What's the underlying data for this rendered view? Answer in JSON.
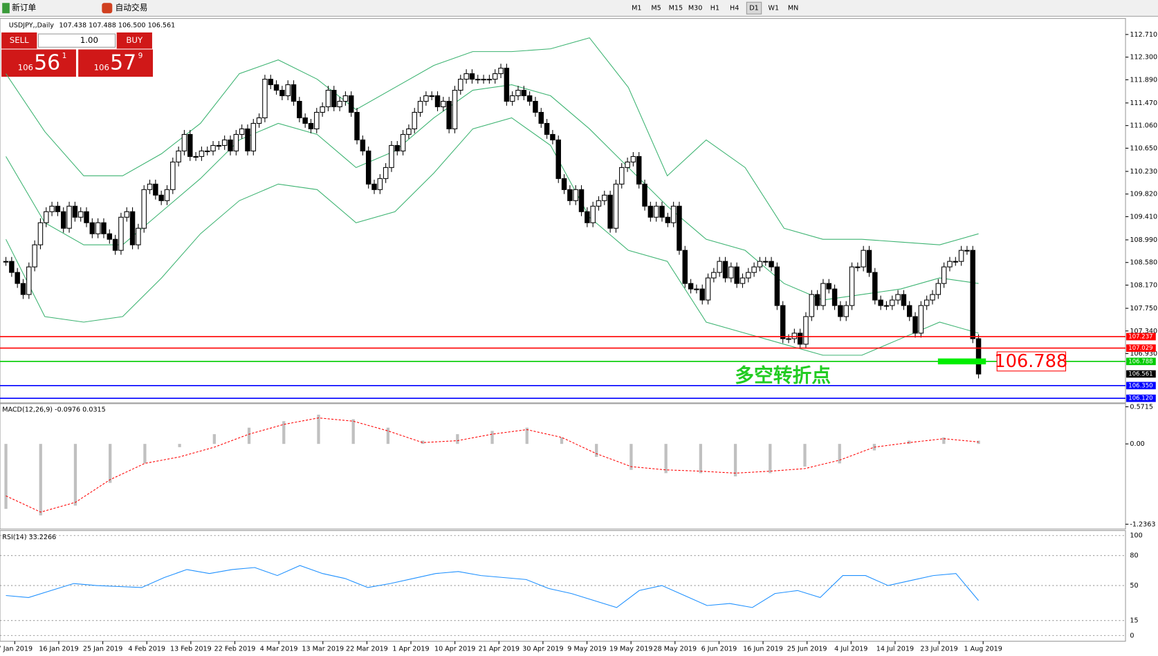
{
  "toolbar": {
    "new_order": "新订单",
    "auto_trading": "自动交易",
    "timeframes": [
      "M1",
      "M5",
      "M15",
      "M30",
      "H1",
      "H4",
      "D1",
      "W1",
      "MN"
    ]
  },
  "header": {
    "symbol": "USDJPY,,Daily",
    "prices": "107.438 107.488 106.500 106.561"
  },
  "trade_panel": {
    "sell": "SELL",
    "buy": "BUY",
    "lots": "1.00",
    "bid": {
      "big": "106",
      "main": "56",
      "small": "1"
    },
    "ask": {
      "big": "106",
      "main": "57",
      "small": "9"
    }
  },
  "main": {
    "ylim": [
      106.05,
      112.8
    ],
    "yticks": [
      {
        "value": 112.71,
        "label": "112.710"
      },
      {
        "value": 112.3,
        "label": "112.300"
      },
      {
        "value": 111.89,
        "label": "111.890"
      },
      {
        "value": 111.47,
        "label": "111.470"
      },
      {
        "value": 111.06,
        "label": "111.060"
      },
      {
        "value": 110.65,
        "label": "110.650"
      },
      {
        "value": 110.23,
        "label": "110.230"
      },
      {
        "value": 109.82,
        "label": "109.820"
      },
      {
        "value": 109.41,
        "label": "109.410"
      },
      {
        "value": 108.99,
        "label": "108.990"
      },
      {
        "value": 108.58,
        "label": "108.580"
      },
      {
        "value": 108.17,
        "label": "108.170"
      },
      {
        "value": 107.75,
        "label": "107.750"
      },
      {
        "value": 107.34,
        "label": "107.340"
      },
      {
        "value": 106.93,
        "label": "106.930"
      }
    ],
    "closes": [
      108.6,
      108.4,
      108.2,
      108.0,
      108.5,
      108.9,
      109.3,
      109.5,
      109.6,
      109.5,
      109.2,
      109.6,
      109.4,
      109.5,
      109.3,
      109.1,
      109.3,
      109.1,
      109.0,
      108.8,
      109.4,
      109.5,
      108.9,
      109.2,
      109.9,
      110.0,
      109.8,
      109.7,
      109.9,
      110.4,
      110.6,
      110.9,
      110.5,
      110.5,
      110.6,
      110.6,
      110.7,
      110.7,
      110.8,
      110.6,
      110.9,
      111.0,
      110.6,
      111.1,
      111.2,
      111.9,
      111.8,
      111.7,
      111.6,
      111.8,
      111.5,
      111.2,
      111.1,
      111.0,
      111.3,
      111.4,
      111.7,
      111.4,
      111.5,
      111.6,
      111.3,
      110.8,
      110.6,
      110.0,
      109.9,
      110.1,
      110.3,
      110.7,
      110.6,
      110.9,
      111.0,
      111.3,
      111.5,
      111.6,
      111.6,
      111.4,
      111.5,
      111.0,
      111.7,
      111.9,
      112.0,
      111.9,
      111.9,
      111.9,
      111.9,
      112.0,
      112.1,
      111.5,
      111.6,
      111.7,
      111.6,
      111.5,
      111.3,
      111.1,
      110.9,
      110.8,
      110.1,
      109.9,
      109.7,
      109.9,
      109.5,
      109.3,
      109.6,
      109.7,
      109.8,
      109.2,
      110.0,
      110.3,
      110.4,
      110.5,
      110.0,
      109.6,
      109.4,
      109.6,
      109.4,
      109.3,
      109.6,
      108.8,
      108.2,
      108.1,
      108.1,
      107.9,
      108.3,
      108.4,
      108.6,
      108.3,
      108.5,
      108.2,
      108.3,
      108.4,
      108.5,
      108.6,
      108.6,
      108.5,
      107.8,
      107.2,
      107.2,
      107.3,
      107.1,
      107.6,
      108.0,
      107.8,
      108.2,
      108.1,
      107.8,
      107.6,
      107.8,
      108.5,
      108.5,
      108.8,
      108.4,
      107.9,
      107.8,
      107.8,
      107.9,
      108.0,
      107.8,
      107.6,
      107.3,
      107.8,
      107.9,
      108.0,
      108.2,
      108.5,
      108.6,
      108.6,
      108.8,
      108.8,
      107.2,
      106.56
    ],
    "bb_upper": [
      112.0,
      110.95,
      110.15,
      110.15,
      110.55,
      111.1,
      112.0,
      112.25,
      111.9,
      111.35,
      111.75,
      112.15,
      112.4,
      112.4,
      112.45,
      112.65,
      111.75,
      110.15,
      110.8,
      110.3,
      109.2,
      109.0,
      109.0,
      108.95,
      108.9,
      109.1
    ],
    "bb_middle": [
      110.5,
      109.3,
      108.9,
      108.9,
      109.5,
      110.1,
      110.8,
      111.1,
      110.9,
      110.3,
      110.6,
      111.2,
      111.7,
      111.8,
      111.6,
      111.0,
      110.3,
      109.6,
      109.0,
      108.8,
      108.2,
      107.9,
      108.0,
      108.1,
      108.3,
      108.2
    ],
    "bb_lower": [
      109.0,
      107.6,
      107.5,
      107.6,
      108.3,
      109.1,
      109.7,
      110.0,
      109.9,
      109.3,
      109.5,
      110.2,
      111.0,
      111.2,
      110.7,
      109.4,
      108.8,
      108.6,
      107.5,
      107.3,
      107.1,
      106.9,
      106.9,
      107.2,
      107.5,
      107.3
    ],
    "levels": [
      {
        "value": 107.237,
        "color": "#ff0000"
      },
      {
        "value": 107.029,
        "color": "#ff0000"
      },
      {
        "value": 106.788,
        "color": "#00cc00"
      },
      {
        "value": 106.35,
        "label": "106.350",
        "color": "#0000ff"
      },
      {
        "value": 106.12,
        "label": "106.120",
        "color": "#0000ff"
      }
    ],
    "current": 106.561,
    "marker": 106.788,
    "annotation": "多空转折点"
  },
  "macd": {
    "label": "MACD(12,26,9) -0.0976 0.0315",
    "ylim": [
      -1.3,
      0.62
    ],
    "yticks": [
      0.5715,
      {
        "value": 0,
        "label": "0.00"
      },
      -1.2363
    ],
    "histogram": [
      -1.0,
      -1.1,
      -0.95,
      -0.6,
      -0.3,
      -0.05,
      0.15,
      0.25,
      0.35,
      0.45,
      0.38,
      0.25,
      0.05,
      0.15,
      0.2,
      0.25,
      0.1,
      -0.2,
      -0.4,
      -0.45,
      -0.45,
      -0.5,
      -0.45,
      -0.35,
      -0.3,
      -0.1,
      0.05,
      0.1,
      0.05
    ],
    "signal": [
      -0.8,
      -1.05,
      -0.9,
      -0.55,
      -0.3,
      -0.2,
      -0.05,
      0.15,
      0.3,
      0.4,
      0.35,
      0.2,
      0.02,
      0.05,
      0.15,
      0.22,
      0.1,
      -0.15,
      -0.35,
      -0.4,
      -0.42,
      -0.45,
      -0.42,
      -0.38,
      -0.25,
      -0.05,
      0.02,
      0.08,
      0.03
    ]
  },
  "rsi": {
    "label": "RSI(14) 33.2266",
    "ylim": [
      -5,
      105
    ],
    "yticks": [
      100,
      80,
      50,
      15,
      0
    ],
    "values": [
      40,
      38,
      45,
      52,
      50,
      49,
      48,
      58,
      66,
      62,
      66,
      68,
      60,
      70,
      62,
      57,
      48,
      52,
      57,
      62,
      64,
      60,
      58,
      56,
      47,
      42,
      35,
      28,
      45,
      50,
      40,
      30,
      32,
      28,
      42,
      45,
      38,
      60,
      60,
      50,
      55,
      60,
      62,
      35
    ]
  },
  "dates": [
    "7 Jan 2019",
    "16 Jan 2019",
    "25 Jan 2019",
    "4 Feb 2019",
    "13 Feb 2019",
    "22 Feb 2019",
    "4 Mar 2019",
    "13 Mar 2019",
    "22 Mar 2019",
    "1 Apr 2019",
    "10 Apr 2019",
    "21 Apr 2019",
    "30 Apr 2019",
    "9 May 2019",
    "19 May 2019",
    "28 May 2019",
    "6 Jun 2019",
    "16 Jun 2019",
    "25 Jun 2019",
    "4 Jul 2019",
    "14 Jul 2019",
    "23 Jul 2019",
    "1 Aug 2019"
  ]
}
